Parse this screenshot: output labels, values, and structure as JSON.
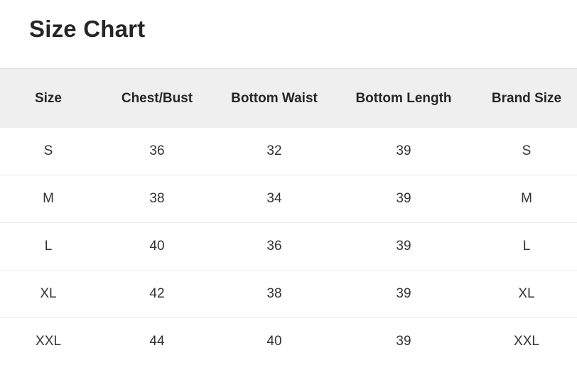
{
  "title": "Size Chart",
  "columns": [
    "Size",
    "Chest/Bust",
    "Bottom Waist",
    "Bottom Length",
    "Brand Size"
  ],
  "rows": [
    [
      "S",
      "36",
      "32",
      "39",
      "S"
    ],
    [
      "M",
      "38",
      "34",
      "39",
      "M"
    ],
    [
      "L",
      "40",
      "36",
      "39",
      "L"
    ],
    [
      "XL",
      "42",
      "38",
      "39",
      "XL"
    ],
    [
      "XXL",
      "44",
      "40",
      "39",
      "XXL"
    ]
  ]
}
